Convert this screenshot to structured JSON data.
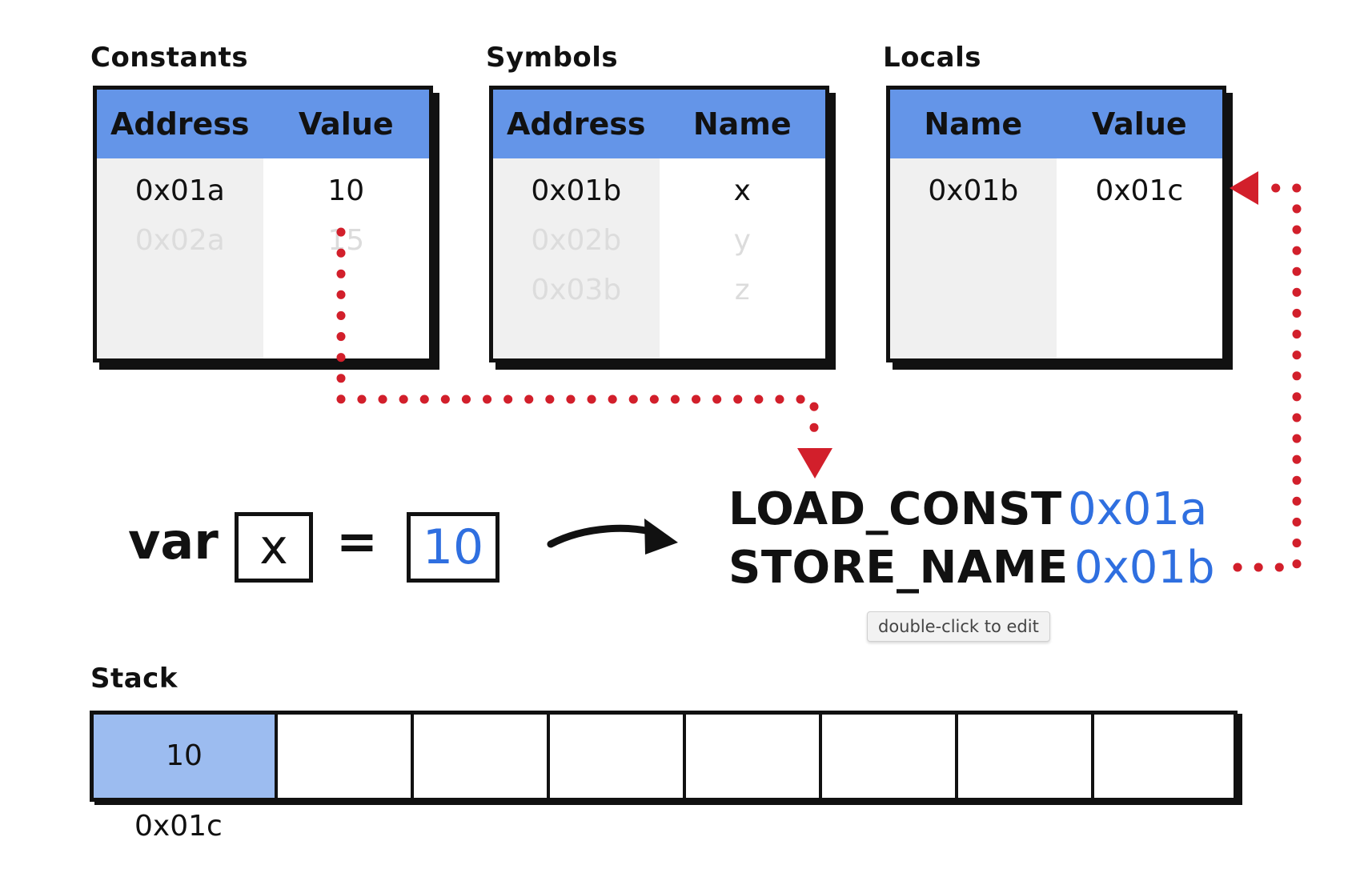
{
  "constants": {
    "title": "Constants",
    "headers": [
      "Address",
      "Value"
    ],
    "rows": [
      {
        "address": "0x01a",
        "value": "10",
        "faded": false
      },
      {
        "address": "0x02a",
        "value": "15",
        "faded": true
      }
    ]
  },
  "symbols": {
    "title": "Symbols",
    "headers": [
      "Address",
      "Name"
    ],
    "rows": [
      {
        "address": "0x01b",
        "name": "x",
        "faded": false
      },
      {
        "address": "0x02b",
        "name": "y",
        "faded": true
      },
      {
        "address": "0x03b",
        "name": "z",
        "faded": true
      }
    ]
  },
  "locals": {
    "title": "Locals",
    "headers": [
      "Name",
      "Value"
    ],
    "rows": [
      {
        "name": "0x01b",
        "value": "0x01c",
        "faded": false
      }
    ]
  },
  "source": {
    "keyword": "var",
    "identifier": "x",
    "equals": "=",
    "literal": "10"
  },
  "bytecode": [
    {
      "op": "LOAD_CONST",
      "arg": "0x01a"
    },
    {
      "op": "STORE_NAME",
      "arg": "0x01b"
    }
  ],
  "tooltip": "double-click to edit",
  "stack": {
    "title": "Stack",
    "slots": [
      "10",
      "",
      "",
      "",
      "",
      "",
      "",
      ""
    ],
    "active_address": "0x01c"
  },
  "colors": {
    "header_blue": "#6495e8",
    "value_blue": "#2f6fe0",
    "arrow_red": "#d21f2b",
    "stack_active": "#9cbcf0"
  }
}
